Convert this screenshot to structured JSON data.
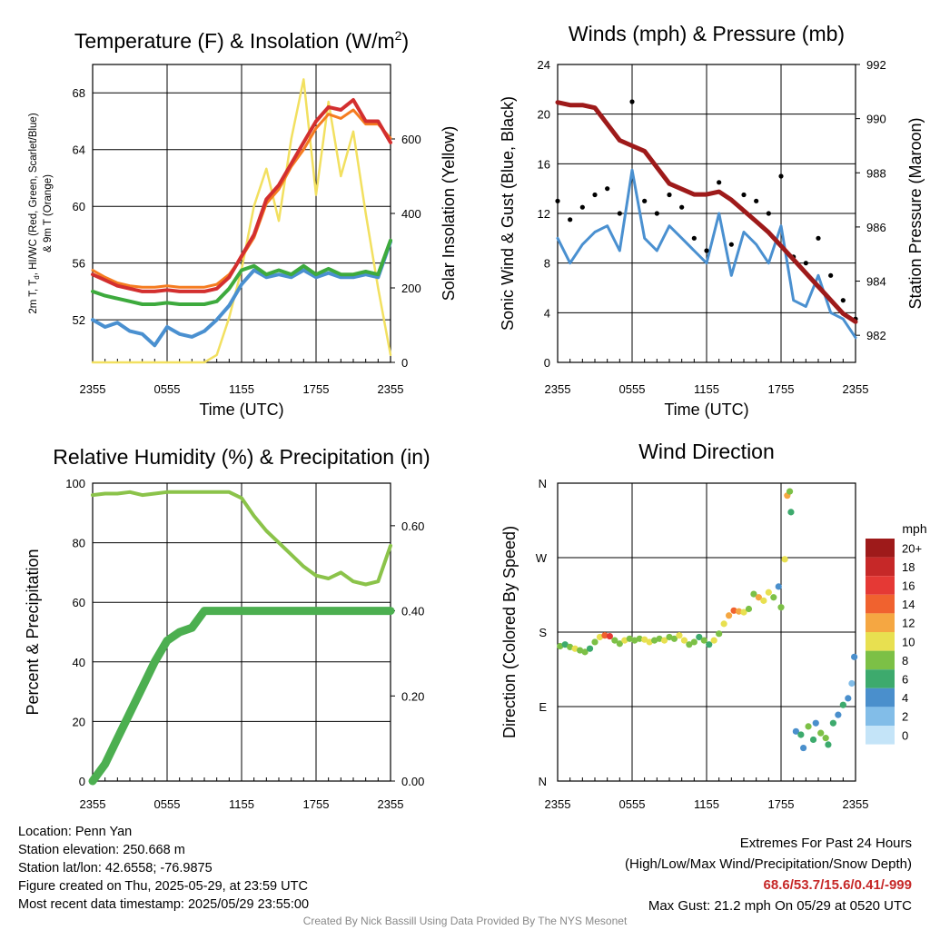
{
  "colors": {
    "temp_red": "#d32f2f",
    "temp_orange": "#f57c20",
    "dewpoint_blue": "#4a90d0",
    "heatindex_green": "#3daa3d",
    "insolation_yellow": "#f2e060",
    "wind_blue": "#4a90d0",
    "gust_black": "#000000",
    "pressure_maroon": "#9e1a1a",
    "rh_green": "#8bc34a",
    "precip_green": "#4caf50",
    "extremes_red": "#c62828",
    "credit_gray": "#888888"
  },
  "chart_data": [
    {
      "id": "temperature",
      "type": "line",
      "title": "Temperature (F) & Insolation (W/m²)",
      "xlabel": "Time (UTC)",
      "ylabel_left": [
        "2m T, T",
        "d",
        ", HI/WC (Red, Green, Scarlet/Blue)",
        "& 9m T (Orange)"
      ],
      "ylabel_right": "Solar Insolation (Yellow)",
      "x_ticks": [
        "2355",
        "0555",
        "1155",
        "1755",
        "2355"
      ],
      "ylim_left": [
        49,
        70
      ],
      "ylim_right": [
        0,
        800
      ],
      "y_ticks_left": [
        52,
        56,
        60,
        64,
        68
      ],
      "y_ticks_right": [
        0,
        200,
        400,
        600
      ],
      "x": [
        0,
        1,
        2,
        3,
        4,
        5,
        6,
        7,
        8,
        9,
        10,
        11,
        12,
        13,
        14,
        15,
        16,
        17,
        18,
        19,
        20,
        21,
        22,
        23,
        24
      ],
      "series": [
        {
          "name": "2m T",
          "axis": "left",
          "color_key": "temp_red",
          "width": 4,
          "values": [
            55.2,
            54.8,
            54.4,
            54.2,
            54.0,
            54.0,
            54.1,
            54.0,
            54.0,
            54.0,
            54.2,
            55.0,
            56.5,
            58.0,
            60.5,
            61.5,
            63.0,
            64.5,
            66.0,
            67.0,
            66.8,
            67.5,
            66.0,
            66.0,
            64.5
          ]
        },
        {
          "name": "9m T",
          "axis": "left",
          "color_key": "temp_orange",
          "width": 3,
          "values": [
            55.5,
            55.0,
            54.6,
            54.4,
            54.3,
            54.3,
            54.4,
            54.3,
            54.3,
            54.3,
            54.5,
            55.2,
            56.4,
            57.8,
            60.2,
            61.2,
            62.8,
            64.0,
            65.5,
            66.5,
            66.2,
            66.8,
            65.8,
            65.8,
            64.8
          ]
        },
        {
          "name": "Td",
          "axis": "left",
          "color_key": "dewpoint_blue",
          "width": 4,
          "values": [
            52.0,
            51.5,
            51.8,
            51.2,
            51.0,
            50.2,
            51.5,
            51.0,
            50.8,
            51.2,
            52.0,
            53.0,
            54.5,
            55.5,
            55.0,
            55.2,
            55.0,
            55.5,
            55.0,
            55.3,
            55.0,
            55.0,
            55.2,
            55.0,
            57.5
          ]
        },
        {
          "name": "HI/WC",
          "axis": "left",
          "color_key": "heatindex_green",
          "width": 4,
          "values": [
            54.0,
            53.7,
            53.5,
            53.3,
            53.1,
            53.1,
            53.2,
            53.1,
            53.1,
            53.1,
            53.3,
            54.2,
            55.5,
            55.8,
            55.2,
            55.5,
            55.2,
            55.8,
            55.2,
            55.6,
            55.2,
            55.2,
            55.4,
            55.2,
            57.6
          ]
        },
        {
          "name": "Insolation",
          "axis": "right",
          "color_key": "insolation_yellow",
          "width": 2.5,
          "values": [
            0,
            0,
            0,
            0,
            0,
            0,
            0,
            0,
            0,
            0,
            20,
            120,
            250,
            420,
            520,
            380,
            600,
            760,
            450,
            700,
            500,
            620,
            400,
            200,
            20
          ]
        }
      ]
    },
    {
      "id": "winds",
      "type": "line",
      "title": "Winds (mph) & Pressure (mb)",
      "xlabel": "Time (UTC)",
      "ylabel_left": "Sonic Wind & Gust (Blue, Black)",
      "ylabel_right": "Station Pressure (Maroon)",
      "x_ticks": [
        "2355",
        "0555",
        "1155",
        "1755",
        "2355"
      ],
      "ylim_left": [
        0,
        24
      ],
      "ylim_right": [
        981,
        992
      ],
      "y_ticks_left": [
        0,
        4,
        8,
        12,
        16,
        20,
        24
      ],
      "y_ticks_right": [
        982,
        984,
        986,
        988,
        990,
        992
      ],
      "x": [
        0,
        1,
        2,
        3,
        4,
        5,
        6,
        7,
        8,
        9,
        10,
        11,
        12,
        13,
        14,
        15,
        16,
        17,
        18,
        19,
        20,
        21,
        22,
        23,
        24
      ],
      "series": [
        {
          "name": "Sonic Wind",
          "axis": "left",
          "color_key": "wind_blue",
          "width": 3,
          "values": [
            10.0,
            8.0,
            9.5,
            10.5,
            11.0,
            9.0,
            15.5,
            10.0,
            9.0,
            11.0,
            10.0,
            9.0,
            8.0,
            12.0,
            7.0,
            10.5,
            9.5,
            8.0,
            11.0,
            5.0,
            4.5,
            7.0,
            4.0,
            3.5,
            2.0
          ]
        },
        {
          "name": "Gust",
          "axis": "left",
          "color_key": "gust_black",
          "style": "points",
          "values": [
            13.0,
            11.5,
            12.5,
            13.5,
            14.0,
            12.0,
            21.0,
            13.0,
            12.0,
            13.5,
            12.5,
            10.0,
            9.0,
            14.5,
            9.5,
            13.5,
            13.0,
            12.0,
            15.0,
            8.5,
            8.0,
            10.0,
            7.0,
            5.0,
            3.5
          ]
        },
        {
          "name": "Pressure",
          "axis": "right",
          "color_key": "pressure_maroon",
          "width": 5,
          "values": [
            990.6,
            990.5,
            990.5,
            990.4,
            989.8,
            989.2,
            989.0,
            988.8,
            988.2,
            987.6,
            987.4,
            987.2,
            987.2,
            987.3,
            987.0,
            986.6,
            986.2,
            985.8,
            985.3,
            984.8,
            984.3,
            983.8,
            983.3,
            982.8,
            982.5
          ]
        }
      ]
    },
    {
      "id": "humidity",
      "type": "line",
      "title": "Relative Humidity (%) & Precipitation (in)",
      "xlabel": "",
      "ylabel_left": "Percent & Precipitation",
      "x_ticks": [
        "2355",
        "0555",
        "1155",
        "1755",
        "2355"
      ],
      "ylim_left": [
        0,
        100
      ],
      "ylim_right": [
        0,
        0.7
      ],
      "y_ticks_left": [
        0,
        20,
        40,
        60,
        80,
        100
      ],
      "y_ticks_right": [
        "0.00",
        "0.20",
        "0.40",
        "0.60"
      ],
      "x": [
        0,
        1,
        2,
        3,
        4,
        5,
        6,
        7,
        8,
        9,
        10,
        11,
        12,
        13,
        14,
        15,
        16,
        17,
        18,
        19,
        20,
        21,
        22,
        23,
        24
      ],
      "series": [
        {
          "name": "RH",
          "axis": "left",
          "color_key": "rh_green",
          "width": 4,
          "values": [
            96,
            96.5,
            96.5,
            97,
            96,
            96.5,
            97,
            97,
            97,
            97,
            97,
            97,
            95,
            89,
            84,
            80,
            76,
            72,
            69,
            68,
            70,
            67,
            66,
            67,
            79
          ]
        },
        {
          "name": "Precipitation",
          "axis": "right",
          "color_key": "precip_green",
          "width": 9,
          "values": [
            0.0,
            0.04,
            0.1,
            0.16,
            0.22,
            0.28,
            0.33,
            0.35,
            0.36,
            0.4,
            0.4,
            0.4,
            0.4,
            0.4,
            0.4,
            0.4,
            0.4,
            0.4,
            0.4,
            0.4,
            0.4,
            0.4,
            0.4,
            0.4,
            0.4
          ]
        }
      ]
    },
    {
      "id": "wind_direction",
      "type": "scatter",
      "title": "Wind Direction",
      "ylabel_left": "Direction (Colored By Speed)",
      "x_ticks": [
        "2355",
        "0555",
        "1155",
        "1755",
        "2355"
      ],
      "y_ticks_left": [
        "N",
        "E",
        "S",
        "W",
        "N"
      ],
      "ylim_left": [
        0,
        360
      ],
      "colorbar_title": "mph",
      "colorbar_labels": [
        "20+",
        "18",
        "16",
        "14",
        "12",
        "10",
        "8",
        "6",
        "4",
        "2",
        "0"
      ],
      "colorbar_colors": [
        "#9e1a1a",
        "#c62828",
        "#e53935",
        "#f0622f",
        "#f5a742",
        "#e8e050",
        "#7cc046",
        "#3daa6d",
        "#4a8fcc",
        "#82bde8",
        "#c4e4f8"
      ],
      "points": [
        {
          "x": 0.2,
          "y": 163,
          "s": 7
        },
        {
          "x": 0.6,
          "y": 165,
          "s": 6
        },
        {
          "x": 1.0,
          "y": 162,
          "s": 8
        },
        {
          "x": 1.4,
          "y": 160,
          "s": 9
        },
        {
          "x": 1.8,
          "y": 158,
          "s": 8
        },
        {
          "x": 2.2,
          "y": 156,
          "s": 7
        },
        {
          "x": 2.6,
          "y": 160,
          "s": 6
        },
        {
          "x": 3.0,
          "y": 168,
          "s": 8
        },
        {
          "x": 3.4,
          "y": 174,
          "s": 9
        },
        {
          "x": 3.8,
          "y": 176,
          "s": 14
        },
        {
          "x": 4.2,
          "y": 175,
          "s": 16
        },
        {
          "x": 4.6,
          "y": 170,
          "s": 8
        },
        {
          "x": 5.0,
          "y": 166,
          "s": 7
        },
        {
          "x": 5.4,
          "y": 170,
          "s": 9
        },
        {
          "x": 5.8,
          "y": 172,
          "s": 8
        },
        {
          "x": 6.2,
          "y": 170,
          "s": 7
        },
        {
          "x": 6.6,
          "y": 172,
          "s": 8
        },
        {
          "x": 7.0,
          "y": 171,
          "s": 9
        },
        {
          "x": 7.4,
          "y": 168,
          "s": 10
        },
        {
          "x": 7.8,
          "y": 170,
          "s": 8
        },
        {
          "x": 8.2,
          "y": 172,
          "s": 7
        },
        {
          "x": 8.6,
          "y": 170,
          "s": 9
        },
        {
          "x": 9.0,
          "y": 174,
          "s": 8
        },
        {
          "x": 9.4,
          "y": 172,
          "s": 7
        },
        {
          "x": 9.8,
          "y": 176,
          "s": 10
        },
        {
          "x": 10.2,
          "y": 170,
          "s": 9
        },
        {
          "x": 10.6,
          "y": 165,
          "s": 8
        },
        {
          "x": 11.0,
          "y": 168,
          "s": 7
        },
        {
          "x": 11.4,
          "y": 174,
          "s": 6
        },
        {
          "x": 11.8,
          "y": 170,
          "s": 8
        },
        {
          "x": 12.2,
          "y": 165,
          "s": 6
        },
        {
          "x": 12.6,
          "y": 170,
          "s": 9
        },
        {
          "x": 13.0,
          "y": 178,
          "s": 7
        },
        {
          "x": 13.4,
          "y": 190,
          "s": 10
        },
        {
          "x": 13.8,
          "y": 200,
          "s": 11
        },
        {
          "x": 14.2,
          "y": 206,
          "s": 13
        },
        {
          "x": 14.6,
          "y": 205,
          "s": 12
        },
        {
          "x": 15.0,
          "y": 204,
          "s": 9
        },
        {
          "x": 15.4,
          "y": 208,
          "s": 7
        },
        {
          "x": 15.8,
          "y": 226,
          "s": 8
        },
        {
          "x": 16.2,
          "y": 222,
          "s": 11
        },
        {
          "x": 16.6,
          "y": 218,
          "s": 10
        },
        {
          "x": 17.0,
          "y": 228,
          "s": 9
        },
        {
          "x": 17.4,
          "y": 222,
          "s": 8
        },
        {
          "x": 17.8,
          "y": 235,
          "s": 4
        },
        {
          "x": 18.0,
          "y": 210,
          "s": 7
        },
        {
          "x": 18.3,
          "y": 268,
          "s": 9
        },
        {
          "x": 18.5,
          "y": 345,
          "s": 12
        },
        {
          "x": 18.7,
          "y": 350,
          "s": 8
        },
        {
          "x": 18.8,
          "y": 325,
          "s": 6
        },
        {
          "x": 19.2,
          "y": 60,
          "s": 4
        },
        {
          "x": 19.6,
          "y": 56,
          "s": 5
        },
        {
          "x": 19.8,
          "y": 40,
          "s": 4
        },
        {
          "x": 20.2,
          "y": 66,
          "s": 7
        },
        {
          "x": 20.6,
          "y": 50,
          "s": 6
        },
        {
          "x": 20.8,
          "y": 70,
          "s": 4
        },
        {
          "x": 21.2,
          "y": 58,
          "s": 8
        },
        {
          "x": 21.6,
          "y": 52,
          "s": 7
        },
        {
          "x": 21.8,
          "y": 44,
          "s": 6
        },
        {
          "x": 22.2,
          "y": 70,
          "s": 5
        },
        {
          "x": 22.6,
          "y": 80,
          "s": 4
        },
        {
          "x": 23.0,
          "y": 92,
          "s": 5
        },
        {
          "x": 23.4,
          "y": 100,
          "s": 3
        },
        {
          "x": 23.7,
          "y": 118,
          "s": 2
        },
        {
          "x": 23.9,
          "y": 150,
          "s": 4
        }
      ]
    }
  ],
  "footer": {
    "location": "Location: Penn Yan",
    "elevation": "Station elevation: 250.668 m",
    "latlon": "Station lat/lon: 42.6558; -76.9875",
    "created": "Figure created on Thu, 2025-05-29, at 23:59 UTC",
    "recent": "Most recent data timestamp: 2025/05/29 23:55:00",
    "extremes_title": "Extremes For Past 24 Hours",
    "extremes_legend": "(High/Low/Max Wind/Precipitation/Snow Depth)",
    "extremes_values": "68.6/53.7/15.6/0.41/-999",
    "max_gust": "Max Gust: 21.2 mph On 05/29 at 0520 UTC",
    "credit": "Created By Nick Bassill Using Data Provided By The NYS Mesonet"
  }
}
